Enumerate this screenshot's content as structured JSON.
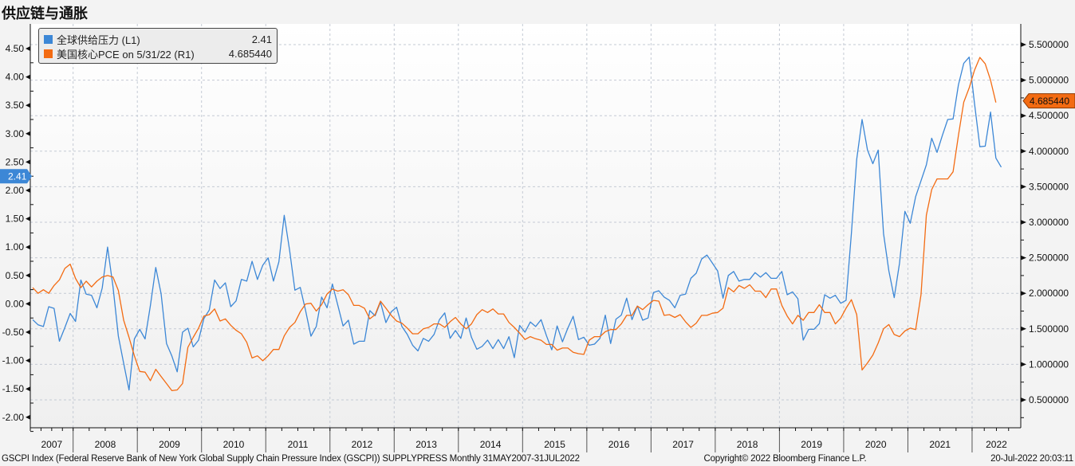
{
  "title": "供应链与通胀",
  "colors": {
    "series1": "#3c87d6",
    "series2": "#f36b12",
    "grid": "#c4cad4",
    "axis": "#111111"
  },
  "legend": [
    {
      "name": "全球供给压力 (L1)",
      "value": "2.41"
    },
    {
      "name": "美国核心PCE on 5/31/22 (R1)",
      "value": "4.685440"
    }
  ],
  "last_value_labels": {
    "left": "2.41",
    "right": "4.685440"
  },
  "footer": {
    "source": "GSCPI Index (Federal Reserve Bank of New York Global Supply Chain Pressure Index (GSCPI)) SUPPLYPRESS  Monthly 31MAY2007-31JUL2022",
    "copyright": "Copyright© 2022 Bloomberg Finance L.P.",
    "timestamp": "20-Jul-2022 20:03:11"
  },
  "chart_data": {
    "type": "line",
    "title": "供应链与通胀",
    "frequency": "monthly",
    "x_year_labels": [
      "2007",
      "2008",
      "2009",
      "2010",
      "2011",
      "2012",
      "2013",
      "2014",
      "2015",
      "2016",
      "2017",
      "2018",
      "2019",
      "2020",
      "2021",
      "2022"
    ],
    "left_axis": {
      "range": [
        -2.0,
        4.5
      ],
      "ticks": [
        "4.50",
        "4.00",
        "3.50",
        "3.00",
        "2.50",
        "2.00",
        "1.50",
        "1.00",
        "0.50",
        "0.00",
        "-0.50",
        "-1.00",
        "-1.50",
        "-2.00"
      ]
    },
    "right_axis": {
      "range": [
        0.5,
        5.5
      ],
      "ticks": [
        "5.500000",
        "5.000000",
        "4.500000",
        "4.000000",
        "3.500000",
        "3.000000",
        "2.500000",
        "2.000000",
        "1.500000",
        "1.000000",
        "0.500000"
      ]
    },
    "grid": true,
    "legend_position": "top-left",
    "series": [
      {
        "name": "全球供给压力 (L1)",
        "axis": "left",
        "values": [
          -0.28,
          -0.37,
          -0.4,
          -0.05,
          -0.08,
          -0.66,
          -0.42,
          -0.17,
          -0.31,
          0.42,
          0.17,
          0.15,
          -0.07,
          0.28,
          1.0,
          0.3,
          -0.57,
          -1.05,
          -1.52,
          -0.62,
          -0.45,
          -0.62,
          -0.03,
          0.64,
          0.18,
          -0.7,
          -0.92,
          -1.2,
          -0.5,
          -0.43,
          -0.76,
          -0.64,
          -0.26,
          -0.11,
          0.42,
          0.27,
          0.37,
          -0.05,
          0.05,
          0.43,
          0.4,
          0.75,
          0.43,
          0.68,
          0.81,
          0.4,
          0.74,
          1.56,
          0.95,
          0.24,
          0.29,
          -0.12,
          -0.57,
          -0.4,
          0.12,
          -0.07,
          0.35,
          -0.02,
          -0.39,
          -0.29,
          -0.71,
          -0.66,
          -0.66,
          -0.12,
          -0.21,
          0.03,
          -0.33,
          -0.14,
          -0.06,
          -0.4,
          -0.54,
          -0.73,
          -0.83,
          -0.61,
          -0.66,
          -0.54,
          -0.28,
          -0.16,
          -0.61,
          -0.47,
          -0.61,
          -0.25,
          -0.59,
          -0.8,
          -0.75,
          -0.64,
          -0.79,
          -0.63,
          -0.79,
          -0.58,
          -0.95,
          -0.38,
          -0.5,
          -0.32,
          -0.4,
          -0.28,
          -0.56,
          -0.81,
          -0.39,
          -0.67,
          -0.43,
          -0.22,
          -0.63,
          -0.59,
          -0.73,
          -0.71,
          -0.61,
          -0.2,
          -0.7,
          -0.27,
          -0.2,
          0.1,
          -0.28,
          -0.04,
          -0.29,
          -0.25,
          0.2,
          0.23,
          0.12,
          0.06,
          -0.07,
          0.15,
          0.17,
          0.45,
          0.54,
          0.79,
          0.86,
          0.72,
          0.58,
          0.1,
          0.5,
          0.57,
          0.4,
          0.43,
          0.43,
          0.55,
          0.47,
          0.55,
          0.45,
          0.45,
          0.57,
          0.16,
          0.21,
          0.09,
          -0.64,
          -0.45,
          -0.45,
          -0.35,
          0.16,
          0.1,
          0.15,
          0.01,
          0.06,
          1.24,
          2.55,
          3.25,
          2.71,
          2.47,
          2.71,
          1.24,
          0.58,
          0.11,
          0.72,
          1.63,
          1.42,
          1.89,
          2.17,
          2.45,
          2.92,
          2.67,
          2.97,
          3.25,
          3.26,
          3.86,
          4.24,
          4.35,
          3.53,
          2.77,
          2.78,
          3.38,
          2.57,
          2.41
        ]
      },
      {
        "name": "美国核心PCE on 5/31/22 (R1)",
        "axis": "right",
        "values": [
          2.08,
          2.0,
          2.05,
          2.0,
          2.11,
          2.19,
          2.35,
          2.41,
          2.21,
          2.08,
          2.17,
          2.09,
          2.17,
          2.23,
          2.25,
          2.23,
          2.04,
          1.62,
          1.38,
          1.12,
          0.9,
          0.89,
          0.77,
          0.93,
          0.83,
          0.73,
          0.63,
          0.64,
          0.73,
          1.24,
          1.38,
          1.51,
          1.68,
          1.7,
          1.78,
          1.61,
          1.64,
          1.55,
          1.48,
          1.43,
          1.31,
          1.09,
          1.12,
          1.05,
          1.12,
          1.21,
          1.21,
          1.4,
          1.52,
          1.59,
          1.74,
          1.85,
          1.86,
          1.75,
          1.84,
          1.99,
          2.06,
          2.03,
          2.05,
          1.98,
          1.83,
          1.83,
          1.79,
          1.64,
          1.7,
          1.89,
          1.79,
          1.69,
          1.61,
          1.58,
          1.51,
          1.43,
          1.43,
          1.5,
          1.52,
          1.57,
          1.57,
          1.52,
          1.6,
          1.66,
          1.57,
          1.5,
          1.57,
          1.7,
          1.77,
          1.73,
          1.78,
          1.71,
          1.71,
          1.59,
          1.52,
          1.44,
          1.35,
          1.39,
          1.36,
          1.34,
          1.28,
          1.28,
          1.2,
          1.23,
          1.23,
          1.17,
          1.15,
          1.14,
          1.34,
          1.39,
          1.39,
          1.46,
          1.49,
          1.49,
          1.57,
          1.69,
          1.69,
          1.82,
          1.77,
          1.84,
          1.9,
          1.89,
          1.69,
          1.7,
          1.66,
          1.7,
          1.6,
          1.52,
          1.58,
          1.69,
          1.69,
          1.72,
          1.73,
          1.79,
          2.08,
          2.02,
          2.11,
          2.07,
          2.12,
          2.03,
          2.03,
          1.94,
          2.06,
          2.06,
          1.83,
          1.68,
          1.57,
          1.69,
          1.62,
          1.73,
          1.73,
          1.84,
          1.73,
          1.73,
          1.57,
          1.65,
          1.79,
          1.91,
          1.7,
          0.92,
          1.02,
          1.13,
          1.3,
          1.5,
          1.56,
          1.42,
          1.39,
          1.47,
          1.51,
          1.49,
          1.98,
          3.1,
          3.46,
          3.61,
          3.61,
          3.61,
          3.71,
          4.22,
          4.69,
          4.89,
          5.14,
          5.32,
          5.23,
          5.0,
          4.68544
        ]
      }
    ]
  }
}
